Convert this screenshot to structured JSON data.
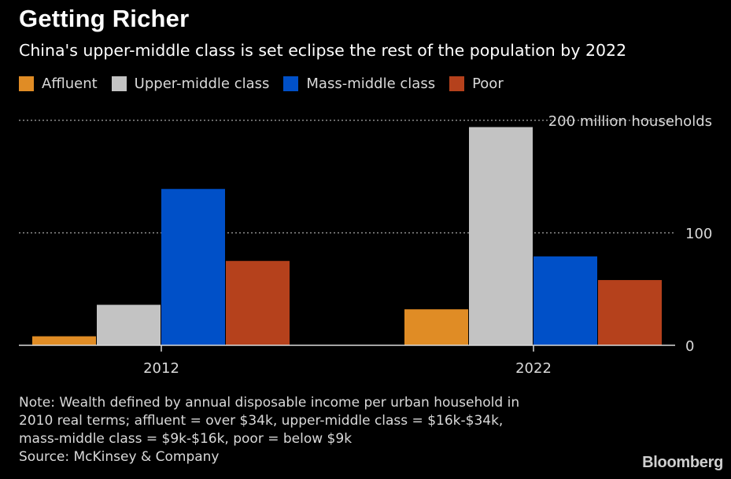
{
  "header": {
    "title": "Getting Richer",
    "subtitle": "China's upper-middle class is set eclipse the rest of the population by 2022"
  },
  "legend": [
    {
      "label": "Affluent",
      "color": "#e08c25"
    },
    {
      "label": "Upper-middle class",
      "color": "#c3c3c3"
    },
    {
      "label": "Mass-middle class",
      "color": "#0050c8"
    },
    {
      "label": "Poor",
      "color": "#b5411c"
    }
  ],
  "chart_data": {
    "type": "bar",
    "categories": [
      "2012",
      "2022"
    ],
    "series": [
      {
        "name": "Affluent",
        "color": "#e08c25",
        "values": [
          8,
          32
        ]
      },
      {
        "name": "Upper-middle class",
        "color": "#c3c3c3",
        "values": [
          36,
          194
        ]
      },
      {
        "name": "Mass-middle class",
        "color": "#0050c8",
        "values": [
          139,
          79
        ]
      },
      {
        "name": "Poor",
        "color": "#b5411c",
        "values": [
          75,
          58
        ]
      }
    ],
    "ylim": [
      0,
      200
    ],
    "yticks": [
      {
        "value": 0,
        "label": "0"
      },
      {
        "value": 100,
        "label": "100"
      },
      {
        "value": 200,
        "label": "200 million households"
      }
    ],
    "grid": true,
    "legend_position": "top-left"
  },
  "footer": {
    "note_lines": [
      "Note: Wealth defined by annual disposable income per urban household in",
      "2010 real terms; affluent = over $34k, upper-middle class = $16k-$34k,",
      "mass-middle class = $9k-$16k, poor = below $9k"
    ],
    "source": "Source: McKinsey & Company",
    "brand": "Bloomberg"
  }
}
